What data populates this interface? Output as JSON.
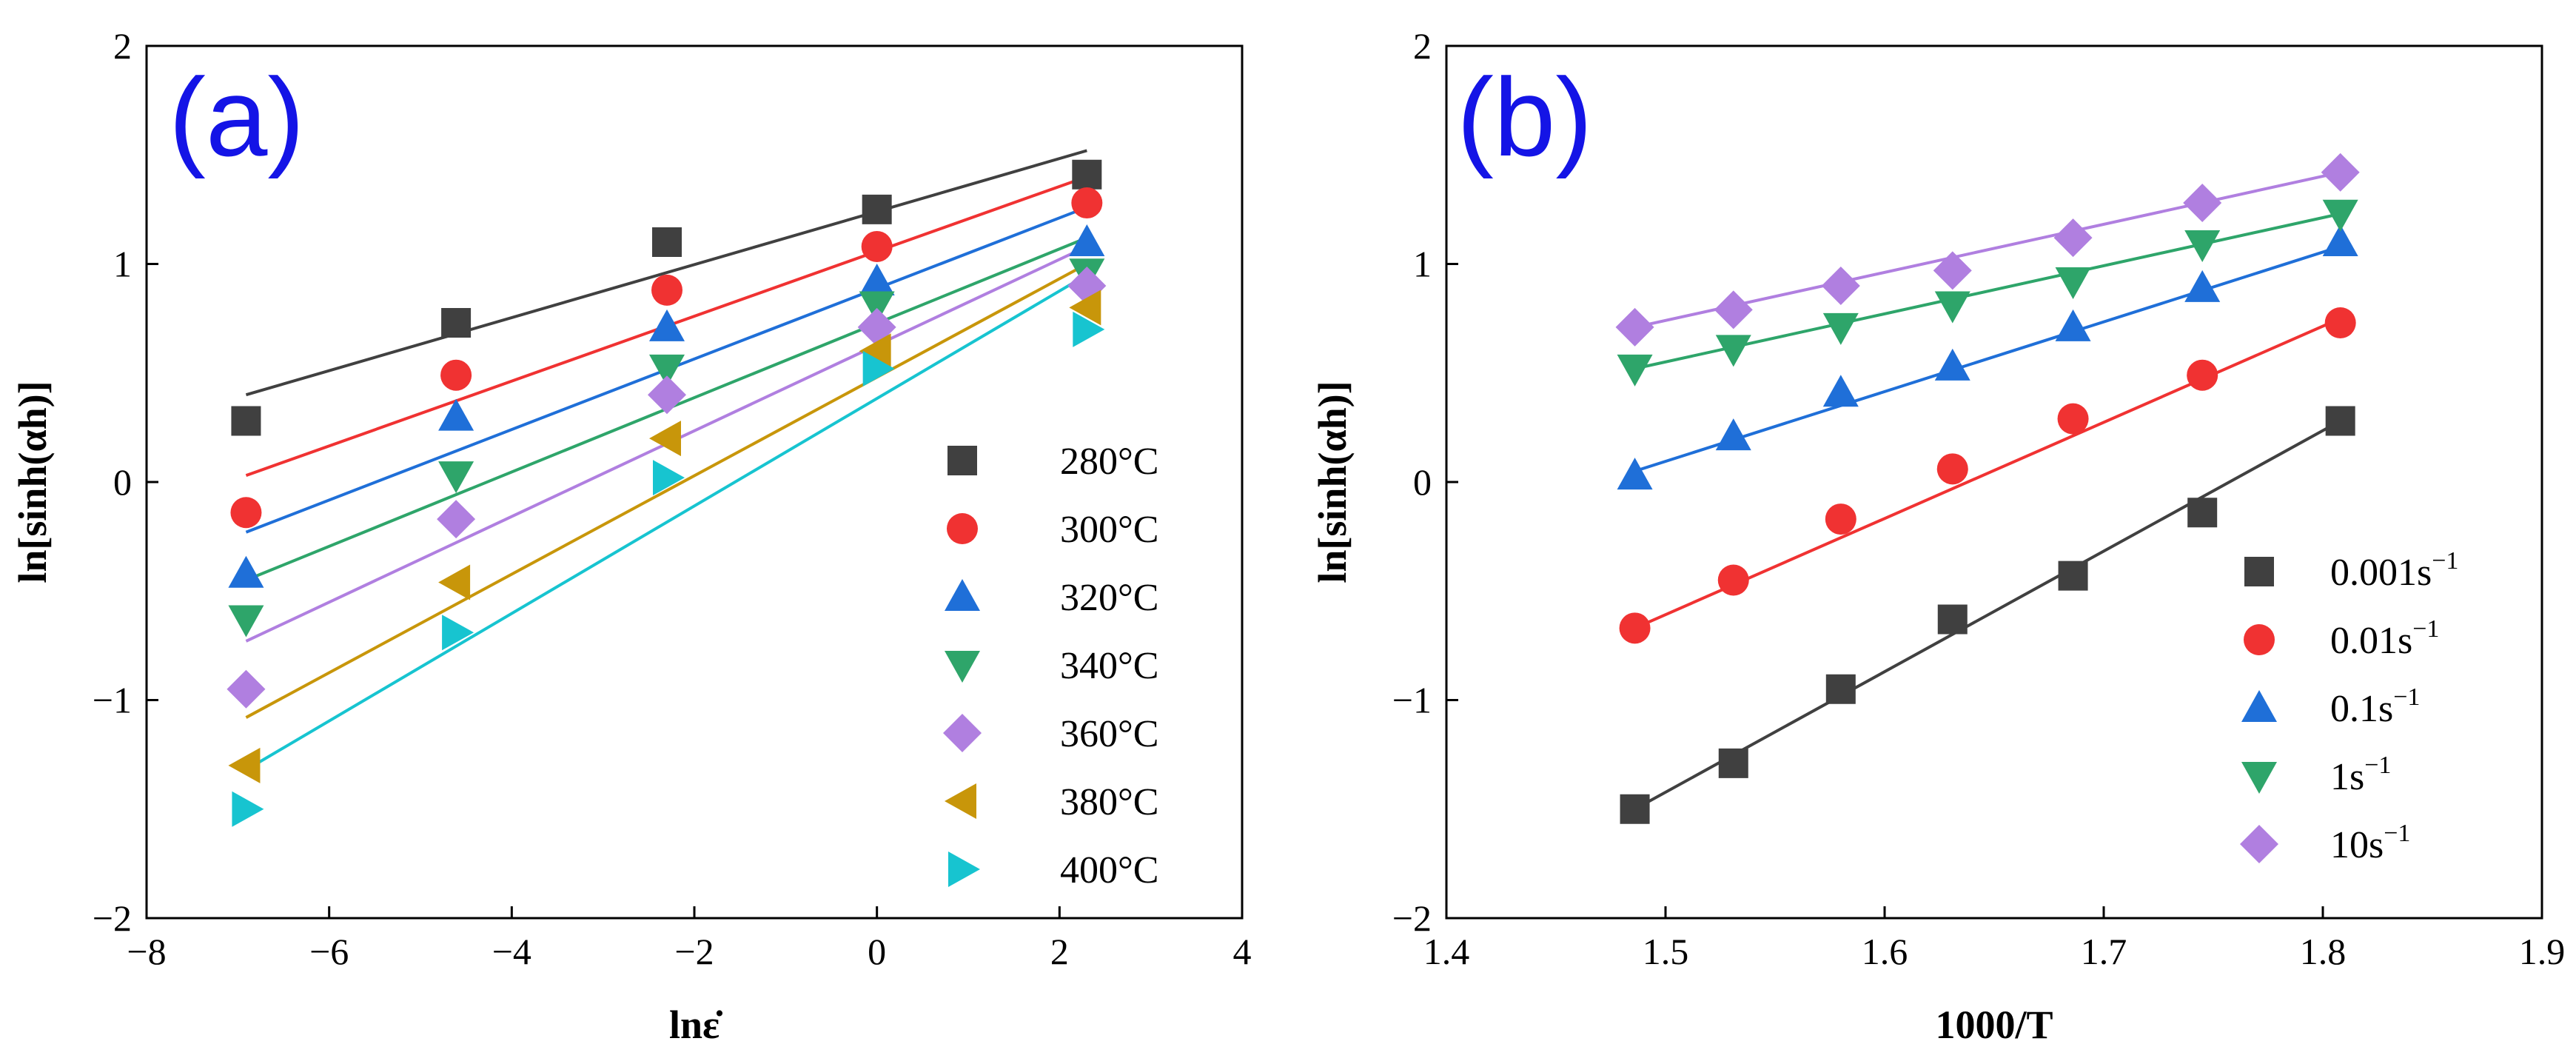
{
  "colors": {
    "s1": "#404040",
    "s2": "#f03232",
    "s3": "#1f6fd8",
    "s4": "#2ea56a",
    "s5": "#b07fe0",
    "s6": "#c8960a",
    "s7": "#17c4d0",
    "fit_s3": "#1f6fd8",
    "panel_label": "#1414e6"
  },
  "chart_data": [
    {
      "type": "scatter",
      "panel_label": "(a)",
      "xlabel": "lnε̇",
      "ylabel": "ln[sinh(αh)]",
      "xlim": [
        -8,
        4
      ],
      "ylim": [
        -2,
        2
      ],
      "xticks": [
        -8,
        -6,
        -4,
        -2,
        0,
        2,
        4
      ],
      "yticks": [
        -2,
        -1,
        0,
        1,
        2
      ],
      "xtick_labels": [
        "−8",
        "−6",
        "−4",
        "−2",
        "0",
        "2",
        "4"
      ],
      "ytick_labels": [
        "−2",
        "−1",
        "0",
        "1",
        "2"
      ],
      "legend_position": "lower-right",
      "x": [
        -6.91,
        -4.61,
        -2.3,
        0,
        2.3
      ],
      "series": [
        {
          "name": "280°C",
          "marker": "square",
          "color": "#404040",
          "values": [
            0.28,
            0.73,
            1.1,
            1.25,
            1.41
          ],
          "fit": [
            0.4,
            1.52
          ]
        },
        {
          "name": "300°C",
          "marker": "circle",
          "color": "#f03232",
          "values": [
            -0.14,
            0.49,
            0.88,
            1.08,
            1.28
          ],
          "fit": [
            0.03,
            1.4
          ]
        },
        {
          "name": "320°C",
          "marker": "triangle-up",
          "color": "#1f6fd8",
          "values": [
            -0.42,
            0.3,
            0.71,
            0.92,
            1.1
          ],
          "fit": [
            -0.23,
            1.26
          ]
        },
        {
          "name": "340°C",
          "marker": "triangle-down",
          "color": "#2ea56a",
          "values": [
            -0.63,
            0.03,
            0.52,
            0.81,
            0.96
          ],
          "fit": [
            -0.45,
            1.12
          ]
        },
        {
          "name": "360°C",
          "marker": "diamond",
          "color": "#b07fe0",
          "values": [
            -0.95,
            -0.17,
            0.4,
            0.71,
            0.9
          ],
          "fit": [
            -0.73,
            1.08
          ]
        },
        {
          "name": "380°C",
          "marker": "triangle-left",
          "color": "#c8960a",
          "values": [
            -1.3,
            -0.46,
            0.2,
            0.6,
            0.8
          ],
          "fit": [
            -1.08,
            1.0
          ]
        },
        {
          "name": "400°C",
          "marker": "triangle-right",
          "color": "#17c4d0",
          "values": [
            -1.5,
            -0.69,
            0.02,
            0.52,
            0.7
          ],
          "fit": [
            -1.32,
            0.95
          ]
        }
      ]
    },
    {
      "type": "scatter",
      "panel_label": "(b)",
      "xlabel": "1000/T",
      "ylabel": "ln[sinh(αh)]",
      "xlim": [
        1.4,
        1.9
      ],
      "ylim": [
        -2,
        2
      ],
      "xticks": [
        1.4,
        1.5,
        1.6,
        1.7,
        1.8,
        1.9
      ],
      "yticks": [
        -2,
        -1,
        0,
        1,
        2
      ],
      "xtick_labels": [
        "1.4",
        "1.5",
        "1.6",
        "1.7",
        "1.8",
        "1.9"
      ],
      "ytick_labels": [
        "−2",
        "−1",
        "0",
        "1",
        "2"
      ],
      "legend_position": "lower-right",
      "x": [
        1.486,
        1.531,
        1.58,
        1.631,
        1.686,
        1.745,
        1.808
      ],
      "series": [
        {
          "name": "0.001s",
          "unit_sup": "−1",
          "marker": "square",
          "color": "#404040",
          "values": [
            -1.5,
            -1.29,
            -0.95,
            -0.63,
            -0.43,
            -0.14,
            0.28
          ],
          "fit": [
            -1.5,
            0.28
          ]
        },
        {
          "name": "0.01s",
          "unit_sup": "−1",
          "marker": "circle",
          "color": "#f03232",
          "values": [
            -0.67,
            -0.45,
            -0.17,
            0.06,
            0.29,
            0.49,
            0.73
          ],
          "fit": [
            -0.67,
            0.75
          ]
        },
        {
          "name": "0.1s",
          "unit_sup": "−1",
          "marker": "triangle-up",
          "color": "#1f6fd8",
          "values": [
            0.03,
            0.21,
            0.41,
            0.53,
            0.71,
            0.89,
            1.1
          ],
          "fit": [
            0.05,
            1.08
          ]
        },
        {
          "name": "1s",
          "unit_sup": "−1",
          "marker": "triangle-down",
          "color": "#2ea56a",
          "values": [
            0.52,
            0.61,
            0.71,
            0.81,
            0.92,
            1.09,
            1.23
          ],
          "fit": [
            0.52,
            1.23
          ]
        },
        {
          "name": "10s",
          "unit_sup": "−1",
          "marker": "diamond",
          "color": "#b07fe0",
          "values": [
            0.71,
            0.79,
            0.9,
            0.97,
            1.12,
            1.28,
            1.42
          ],
          "fit": [
            0.71,
            1.42
          ]
        }
      ]
    }
  ]
}
